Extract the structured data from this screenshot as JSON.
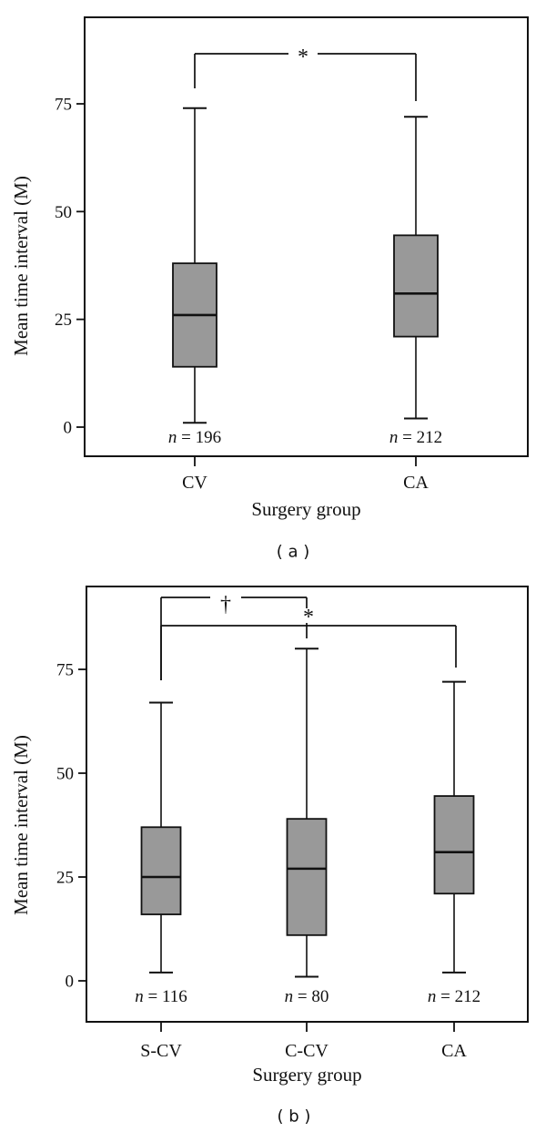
{
  "figure": {
    "caption_a": "( a )",
    "caption_b": "( b )"
  },
  "colors": {
    "background": "#ffffff",
    "line": "#111111",
    "box_fill": "#999999"
  },
  "chart_data": [
    {
      "type": "boxplot",
      "panel": "a",
      "title": "",
      "xlabel": "Surgery group",
      "ylabel": "Mean time interval (M)",
      "yticks": [
        0,
        25,
        50,
        75
      ],
      "ylim": [
        -7,
        95
      ],
      "grid": false,
      "categories": [
        "CV",
        "CA"
      ],
      "n_symbol": "n",
      "n_equals": " = ",
      "boxes": [
        {
          "group": "CV",
          "n": "196",
          "whisker_low": 1,
          "q1": 14,
          "median": 26,
          "q3": 38,
          "whisker_high": 74
        },
        {
          "group": "CA",
          "n": "212",
          "whisker_low": 2,
          "q1": 21,
          "median": 31,
          "q3": 44.5,
          "whisker_high": 72
        }
      ],
      "significance": [
        {
          "from": "CV",
          "to": "CA",
          "label": "*"
        }
      ]
    },
    {
      "type": "boxplot",
      "panel": "b",
      "title": "",
      "xlabel": "Surgery group",
      "ylabel": "Mean time interval (M)",
      "yticks": [
        0,
        25,
        50,
        75
      ],
      "ylim": [
        -10,
        95
      ],
      "grid": false,
      "categories": [
        "S-CV",
        "C-CV",
        "CA"
      ],
      "n_symbol": "n",
      "n_equals": " = ",
      "boxes": [
        {
          "group": "S-CV",
          "n": "116",
          "whisker_low": 2,
          "q1": 16,
          "median": 25,
          "q3": 37,
          "whisker_high": 67
        },
        {
          "group": "C-CV",
          "n": "80",
          "whisker_low": 1,
          "q1": 11,
          "median": 27,
          "q3": 39,
          "whisker_high": 80
        },
        {
          "group": "CA",
          "n": "212",
          "whisker_low": 2,
          "q1": 21,
          "median": 31,
          "q3": 44.5,
          "whisker_high": 72
        }
      ],
      "significance": [
        {
          "from": "S-CV",
          "to": "C-CV",
          "label": "†"
        },
        {
          "from": "S-CV",
          "to": "CA",
          "label": "*"
        }
      ]
    }
  ]
}
